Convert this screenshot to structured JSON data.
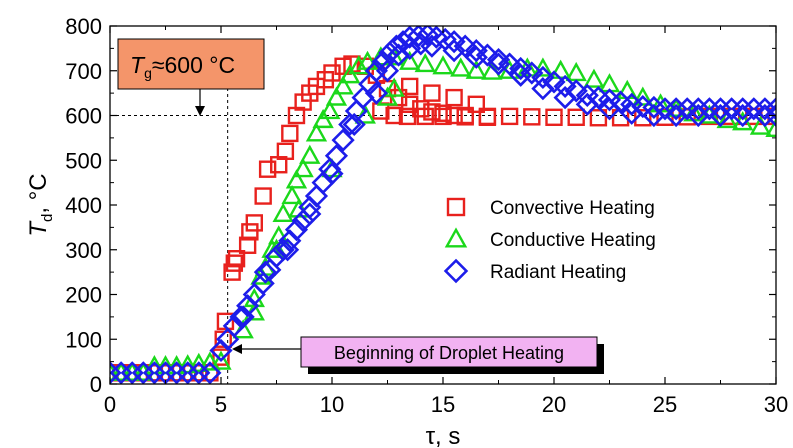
{
  "chart_data": {
    "type": "scatter",
    "xlabel": "τ, s",
    "ylabel_main": "T",
    "ylabel_sub": "d",
    "ylabel_rest": ", °C",
    "xlim": [
      0,
      30
    ],
    "ylim": [
      0,
      800
    ],
    "xticks": [
      0,
      5,
      10,
      15,
      20,
      25,
      30
    ],
    "yticks": [
      0,
      100,
      200,
      300,
      400,
      500,
      600,
      700,
      800
    ],
    "grid": false,
    "legend_position": "center-right",
    "reference_lines": {
      "x": 5.3,
      "y": 600
    },
    "annotations": {
      "gas_temp_main": "T",
      "gas_temp_sub": "g",
      "gas_temp_rest": "≈600 °C",
      "gas_temp_box_color": "#f4956a",
      "heating_start": "Beginning of Droplet Heating",
      "heating_start_box_color": "#f2b2f2"
    },
    "series": [
      {
        "name": "Convective Heating",
        "marker": "square",
        "color": "#e8211d",
        "points": [
          [
            0,
            25
          ],
          [
            0.5,
            25
          ],
          [
            1,
            25
          ],
          [
            1.5,
            25
          ],
          [
            2,
            25
          ],
          [
            2.5,
            25
          ],
          [
            3,
            25
          ],
          [
            3.5,
            25
          ],
          [
            4,
            25
          ],
          [
            4.5,
            25
          ],
          [
            5,
            60
          ],
          [
            5.1,
            100
          ],
          [
            5.2,
            140
          ],
          [
            5.5,
            250
          ],
          [
            5.6,
            270
          ],
          [
            5.7,
            280
          ],
          [
            6.2,
            310
          ],
          [
            6.3,
            340
          ],
          [
            6.5,
            360
          ],
          [
            6.9,
            420
          ],
          [
            7.1,
            480
          ],
          [
            7.6,
            490
          ],
          [
            7.9,
            520
          ],
          [
            8.1,
            560
          ],
          [
            8.4,
            600
          ],
          [
            8.7,
            630
          ],
          [
            9,
            650
          ],
          [
            9.3,
            665
          ],
          [
            9.7,
            680
          ],
          [
            10,
            695
          ],
          [
            10.5,
            710
          ],
          [
            10.9,
            715
          ],
          [
            11.5,
            710
          ],
          [
            12,
            690
          ],
          [
            12.5,
            660
          ],
          [
            13,
            640
          ],
          [
            13.5,
            625
          ],
          [
            14,
            615
          ],
          [
            14.5,
            608
          ],
          [
            15,
            605
          ],
          [
            15.5,
            600
          ],
          [
            16,
            600
          ],
          [
            17,
            598
          ],
          [
            18,
            598
          ],
          [
            19,
            597
          ],
          [
            20,
            596
          ],
          [
            21,
            596
          ],
          [
            22,
            595
          ],
          [
            23,
            595
          ],
          [
            24,
            595
          ],
          [
            25,
            596
          ],
          [
            26,
            597
          ],
          [
            27,
            598
          ],
          [
            28,
            598
          ],
          [
            29,
            598
          ],
          [
            30,
            598
          ],
          [
            12.2,
            610
          ],
          [
            12.8,
            600
          ],
          [
            13.4,
            598
          ],
          [
            14.2,
            598
          ],
          [
            15,
            598
          ],
          [
            16,
            597
          ],
          [
            17,
            596
          ],
          [
            13.5,
            665
          ],
          [
            14.5,
            650
          ],
          [
            15.5,
            640
          ],
          [
            16.5,
            625
          ]
        ]
      },
      {
        "name": "Conductive Heating",
        "marker": "triangle",
        "color": "#1bd81b",
        "points": [
          [
            0,
            25
          ],
          [
            0.5,
            25
          ],
          [
            1,
            25
          ],
          [
            1.5,
            25
          ],
          [
            2,
            40
          ],
          [
            2.5,
            40
          ],
          [
            3,
            40
          ],
          [
            3.5,
            42
          ],
          [
            4,
            45
          ],
          [
            4.5,
            48
          ],
          [
            5,
            50
          ],
          [
            6,
            120
          ],
          [
            6.5,
            160
          ],
          [
            6.8,
            240
          ],
          [
            7,
            260
          ],
          [
            7.3,
            300
          ],
          [
            7.6,
            330
          ],
          [
            7.8,
            380
          ],
          [
            8.2,
            420
          ],
          [
            8.4,
            455
          ],
          [
            8.7,
            480
          ],
          [
            9,
            510
          ],
          [
            9.3,
            560
          ],
          [
            9.6,
            590
          ],
          [
            9.9,
            610
          ],
          [
            10.2,
            640
          ],
          [
            10.5,
            665
          ],
          [
            10.8,
            690
          ],
          [
            11.2,
            710
          ],
          [
            11.6,
            720
          ],
          [
            12.2,
            730
          ],
          [
            12.8,
            730
          ],
          [
            13.5,
            720
          ],
          [
            14.2,
            715
          ],
          [
            15,
            710
          ],
          [
            15.8,
            705
          ],
          [
            16.5,
            700
          ],
          [
            17.2,
            698
          ],
          [
            18,
            700
          ],
          [
            18.8,
            705
          ],
          [
            19.5,
            705
          ],
          [
            20.3,
            700
          ],
          [
            21,
            695
          ],
          [
            21.8,
            680
          ],
          [
            22.5,
            670
          ],
          [
            23.3,
            655
          ],
          [
            24,
            640
          ],
          [
            24.8,
            625
          ],
          [
            25.5,
            615
          ],
          [
            26.3,
            605
          ],
          [
            27,
            600
          ],
          [
            27.8,
            590
          ],
          [
            28.5,
            585
          ],
          [
            29.3,
            575
          ],
          [
            30,
            570
          ],
          [
            6.5,
            190
          ],
          [
            7.5,
            300
          ],
          [
            8.5,
            390
          ],
          [
            10,
            480
          ],
          [
            11.5,
            600
          ],
          [
            12.5,
            640
          ],
          [
            12.8,
            660
          ]
        ]
      },
      {
        "name": "Radiant Heating",
        "marker": "diamond",
        "color": "#1d1dea",
        "points": [
          [
            0,
            25
          ],
          [
            0.5,
            25
          ],
          [
            1,
            25
          ],
          [
            1.5,
            25
          ],
          [
            2,
            25
          ],
          [
            2.5,
            25
          ],
          [
            3,
            25
          ],
          [
            3.5,
            25
          ],
          [
            4,
            25
          ],
          [
            4.5,
            25
          ],
          [
            5,
            75
          ],
          [
            5.3,
            100
          ],
          [
            5.6,
            130
          ],
          [
            5.9,
            150
          ],
          [
            6.2,
            175
          ],
          [
            6.5,
            200
          ],
          [
            6.9,
            225
          ],
          [
            7.2,
            255
          ],
          [
            7.5,
            285
          ],
          [
            7.8,
            300
          ],
          [
            8.1,
            320
          ],
          [
            8.4,
            345
          ],
          [
            8.7,
            365
          ],
          [
            9,
            395
          ],
          [
            9.3,
            420
          ],
          [
            9.6,
            450
          ],
          [
            9.9,
            480
          ],
          [
            10.2,
            510
          ],
          [
            10.5,
            545
          ],
          [
            10.8,
            580
          ],
          [
            11.1,
            610
          ],
          [
            11.4,
            640
          ],
          [
            11.7,
            670
          ],
          [
            12,
            700
          ],
          [
            12.3,
            720
          ],
          [
            12.6,
            740
          ],
          [
            12.9,
            755
          ],
          [
            13.2,
            765
          ],
          [
            13.5,
            775
          ],
          [
            13.9,
            778
          ],
          [
            14.3,
            780
          ],
          [
            14.7,
            775
          ],
          [
            15.1,
            770
          ],
          [
            15.5,
            765
          ],
          [
            16,
            755
          ],
          [
            16.5,
            745
          ],
          [
            17,
            735
          ],
          [
            17.5,
            725
          ],
          [
            18,
            715
          ],
          [
            18.5,
            705
          ],
          [
            19,
            695
          ],
          [
            19.5,
            685
          ],
          [
            20,
            675
          ],
          [
            20.5,
            665
          ],
          [
            21,
            655
          ],
          [
            21.5,
            645
          ],
          [
            22,
            640
          ],
          [
            22.5,
            635
          ],
          [
            23,
            630
          ],
          [
            23.5,
            625
          ],
          [
            24,
            620
          ],
          [
            24.5,
            618
          ],
          [
            25,
            615
          ],
          [
            25.5,
            615
          ],
          [
            26,
            615
          ],
          [
            26.5,
            615
          ],
          [
            27,
            615
          ],
          [
            27.5,
            615
          ],
          [
            28,
            615
          ],
          [
            28.5,
            615
          ],
          [
            29,
            615
          ],
          [
            29.5,
            615
          ],
          [
            30,
            615
          ],
          [
            6,
            150
          ],
          [
            7,
            250
          ],
          [
            8,
            300
          ],
          [
            9,
            380
          ],
          [
            10,
            470
          ],
          [
            11,
            580
          ],
          [
            12,
            650
          ],
          [
            12.5,
            700
          ],
          [
            13,
            735
          ],
          [
            13.5,
            750
          ],
          [
            14,
            760
          ],
          [
            14.5,
            755
          ],
          [
            15.5,
            745
          ],
          [
            16.5,
            730
          ],
          [
            17.5,
            715
          ],
          [
            18.5,
            690
          ],
          [
            19.5,
            660
          ],
          [
            20.5,
            640
          ],
          [
            21.5,
            625
          ],
          [
            22.5,
            615
          ],
          [
            23.5,
            605
          ],
          [
            24.5,
            600
          ],
          [
            25.5,
            600
          ],
          [
            26.5,
            600
          ],
          [
            27.5,
            600
          ],
          [
            28.5,
            600
          ],
          [
            29.5,
            600
          ],
          [
            30,
            600
          ]
        ]
      }
    ]
  }
}
